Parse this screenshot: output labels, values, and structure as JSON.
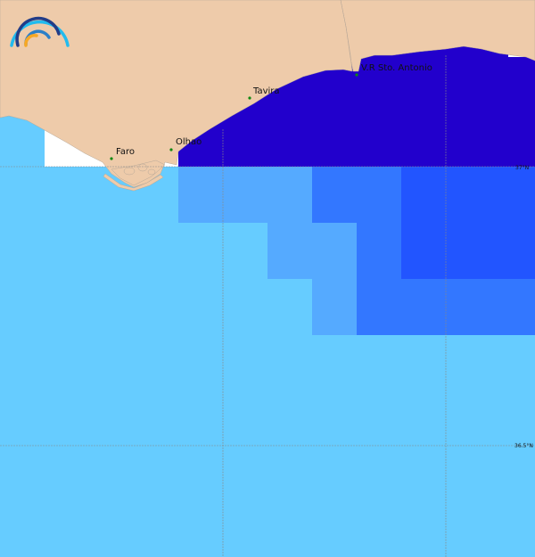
{
  "map": {
    "cities": [
      {
        "name": "Faro"
      },
      {
        "name": "Olhao"
      },
      {
        "name": "Tavira"
      },
      {
        "name": "V.R Sto. Antonio"
      }
    ],
    "latitude_labels": [
      "37°N",
      "36.5°N"
    ],
    "colors": {
      "land": "#eecbaa",
      "class_1": "#66ccff",
      "class_2": "#55aaff",
      "class_3": "#3377ff",
      "class_4": "#2255ff",
      "class_5": "#2200cc",
      "no_data": "#ffffff",
      "grid": "#888888",
      "city_marker": "#118811"
    },
    "logo": "arc-waves-logo"
  }
}
